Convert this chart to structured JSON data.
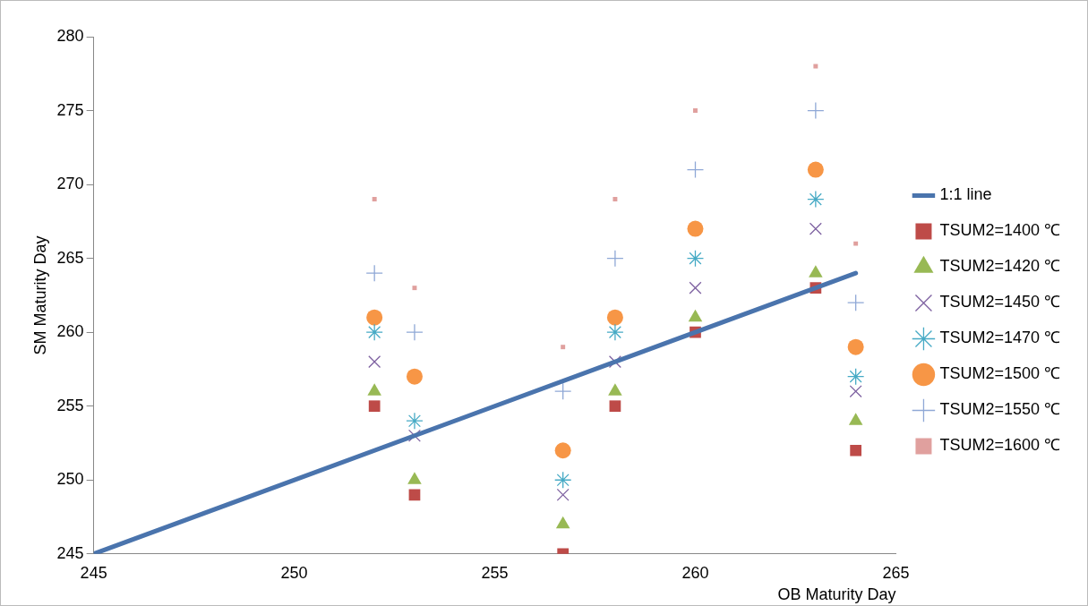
{
  "chart_data": {
    "type": "scatter",
    "xlabel": "OB Maturity Day",
    "ylabel": "SM Maturity Day",
    "xlim": [
      245,
      265
    ],
    "ylim": [
      245,
      280
    ],
    "xticks": [
      245,
      250,
      255,
      260,
      265
    ],
    "yticks": [
      245,
      250,
      255,
      260,
      265,
      270,
      275,
      280
    ],
    "legend": "right",
    "series": [
      {
        "name": "1:1 line",
        "type": "line",
        "color": "#4a74ad",
        "x": [
          245,
          264
        ],
        "values": [
          245,
          264
        ],
        "line_style": "solid"
      },
      {
        "name": "TSUM2=1400 ℃",
        "color": "#be4b48",
        "marker": "square",
        "x": [
          252,
          253,
          256.7,
          258,
          260,
          263,
          264
        ],
        "values": [
          255,
          249,
          245,
          255,
          260,
          263,
          252
        ]
      },
      {
        "name": "TSUM2=1420 ℃",
        "color": "#98b954",
        "marker": "triangle",
        "x": [
          252,
          253,
          256.7,
          258,
          260,
          263,
          264
        ],
        "values": [
          256,
          250,
          247,
          256,
          261,
          264,
          254
        ]
      },
      {
        "name": "TSUM2=1450 ℃",
        "color": "#7d60a0",
        "marker": "cross",
        "x": [
          252,
          253,
          256.7,
          258,
          260,
          263,
          264
        ],
        "values": [
          258,
          253,
          249,
          258,
          263,
          267,
          256
        ]
      },
      {
        "name": "TSUM2=1470 ℃",
        "color": "#46aac5",
        "marker": "cross",
        "x": [
          252,
          253,
          256.7,
          258,
          260,
          263,
          264
        ],
        "values": [
          260,
          254,
          250,
          260,
          265,
          269,
          257
        ]
      },
      {
        "name": "TSUM2=1500 ℃",
        "color": "#f79646",
        "marker": "circle",
        "x": [
          252,
          253,
          256.7,
          258,
          260,
          263,
          264
        ],
        "values": [
          261,
          257,
          252,
          261,
          267,
          271,
          259
        ]
      },
      {
        "name": "TSUM2=1550 ℃",
        "color": "#8fa8d6",
        "marker": "cross",
        "x": [
          252,
          253,
          256.7,
          258,
          260,
          263,
          264
        ],
        "values": [
          264,
          260,
          256,
          265,
          271,
          275,
          262
        ]
      },
      {
        "name": "TSUM2=1600 ℃",
        "color": "#e0a09e",
        "marker": "square",
        "x": [
          252,
          253,
          256.7,
          258,
          260,
          263,
          264
        ],
        "values": [
          269,
          263,
          259,
          269,
          275,
          278,
          266
        ]
      }
    ]
  }
}
